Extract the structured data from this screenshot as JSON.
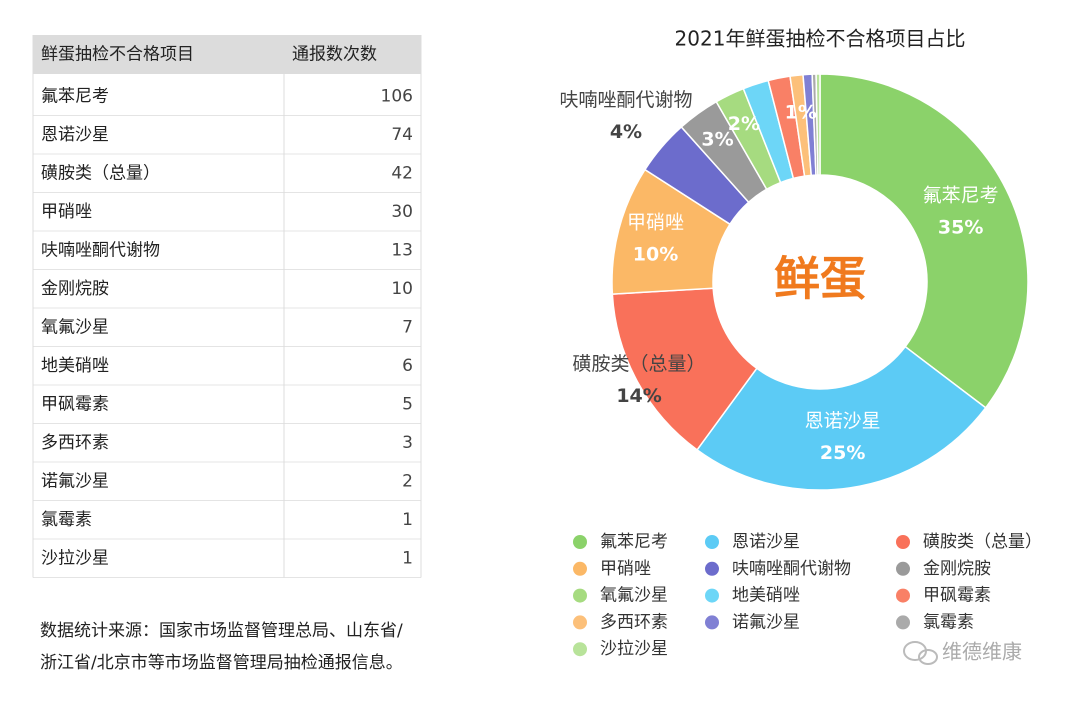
{
  "table": {
    "header": [
      "鲜蛋抽检不合格项目",
      "通报数次数"
    ],
    "rows": [
      [
        "氟苯尼考",
        "106"
      ],
      [
        "恩诺沙星",
        "74"
      ],
      [
        "磺胺类（总量）",
        "42"
      ],
      [
        "甲硝唑",
        "30"
      ],
      [
        "呋喃唑酮代谢物",
        "13"
      ],
      [
        "金刚烷胺",
        "10"
      ],
      [
        "氧氟沙星",
        "7"
      ],
      [
        "地美硝唑",
        "6"
      ],
      [
        "甲砜霉素",
        "5"
      ],
      [
        "多西环素",
        "3"
      ],
      [
        "诺氟沙星",
        "2"
      ],
      [
        "氯霉素",
        "1"
      ],
      [
        "沙拉沙星",
        "1"
      ]
    ]
  },
  "source": {
    "lines": [
      "数据统计来源：国家市场监督管理总局、山东省/",
      "浙江省/北京市等市场监督管理局抽检通报信息。"
    ]
  },
  "watermark": "维德维康",
  "chart_data": {
    "type": "donut",
    "title": "2021年鲜蛋抽检不合格项目占比",
    "center_label": "鲜蛋",
    "categories": [
      "氟苯尼考",
      "恩诺沙星",
      "磺胺类（总量）",
      "甲硝唑",
      "呋喃唑酮代谢物",
      "金刚烷胺",
      "氧氟沙星",
      "地美硝唑",
      "甲砜霉素",
      "多西环素",
      "诺氟沙星",
      "氯霉素",
      "沙拉沙星"
    ],
    "values": [
      35.3,
      24.7,
      14,
      10,
      4.3,
      3.3,
      2.3,
      2,
      1.7,
      1,
      0.7,
      0.3,
      0.3
    ],
    "value_labels": [
      "35%",
      "25%",
      "14%",
      "10%",
      "4%",
      "3%",
      "2%",
      null,
      null,
      "1%",
      null,
      null,
      null
    ],
    "colors": [
      "#8bd26a",
      "#5ccbf5",
      "#f9715a",
      "#fbb866",
      "#6c6ccc",
      "#9a9a9a",
      "#a6db80",
      "#6dd6f7",
      "#f98066",
      "#fcc07a",
      "#8080d4",
      "#aaaaaa",
      "#b8e39a"
    ],
    "legend": "bottom"
  }
}
